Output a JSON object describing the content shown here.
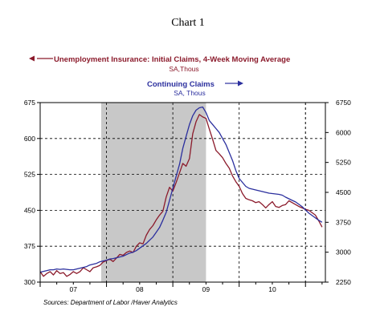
{
  "title": "Chart 1",
  "chart_data": {
    "type": "line",
    "colors": {
      "initial_claims": "#8b1a2b",
      "continuing_claims": "#2b2f9e",
      "recession_shade": "#c8c8c8"
    },
    "legend": {
      "initial": "Unemployment Insurance: Initial Claims, 4-Week Moving Average",
      "initial_units": "SA,Thous",
      "continuing": "Continuing Claims",
      "continuing_units": "SA, Thous"
    },
    "source": "Sources:  Department of Labor /Haver Analytics",
    "left_axis": {
      "ylim": [
        300,
        675
      ],
      "ticks": [
        "675",
        "600",
        "525",
        "450",
        "375",
        "300"
      ]
    },
    "right_axis": {
      "ylim": [
        2250,
        6750
      ],
      "ticks": [
        "6750",
        "6000",
        "5250",
        "4500",
        "3750",
        "3000",
        "2250"
      ]
    },
    "x_axis": {
      "xlim": [
        2007.0,
        2011.3
      ],
      "tick_labels": [
        "07",
        "08",
        "09",
        "10"
      ]
    },
    "recession": [
      2007.92,
      2009.5
    ],
    "series": [
      {
        "name": "Unemployment Insurance: Initial Claims, 4-Week Moving Average",
        "axis": "left",
        "x": [
          2007.0,
          2007.05,
          2007.1,
          2007.15,
          2007.2,
          2007.25,
          2007.3,
          2007.35,
          2007.4,
          2007.45,
          2007.5,
          2007.55,
          2007.6,
          2007.65,
          2007.7,
          2007.75,
          2007.8,
          2007.85,
          2007.9,
          2007.95,
          2008.0,
          2008.05,
          2008.1,
          2008.15,
          2008.2,
          2008.25,
          2008.3,
          2008.35,
          2008.4,
          2008.45,
          2008.5,
          2008.55,
          2008.6,
          2008.65,
          2008.7,
          2008.75,
          2008.8,
          2008.85,
          2008.9,
          2008.95,
          2009.0,
          2009.05,
          2009.1,
          2009.15,
          2009.2,
          2009.25,
          2009.3,
          2009.35,
          2009.4,
          2009.45,
          2009.5,
          2009.55,
          2009.6,
          2009.65,
          2009.7,
          2009.75,
          2009.8,
          2009.85,
          2009.9,
          2009.95,
          2010.0,
          2010.05,
          2010.1,
          2010.15,
          2010.2,
          2010.25,
          2010.3,
          2010.35,
          2010.4,
          2010.45,
          2010.5,
          2010.55,
          2010.6,
          2010.65,
          2010.7,
          2010.75,
          2010.8,
          2010.85,
          2010.9,
          2010.95,
          2011.0,
          2011.05,
          2011.1,
          2011.15,
          2011.2,
          2011.25
        ],
        "values": [
          322,
          312,
          318,
          322,
          315,
          324,
          318,
          320,
          312,
          316,
          322,
          318,
          322,
          330,
          326,
          322,
          330,
          332,
          335,
          342,
          345,
          348,
          343,
          350,
          358,
          356,
          362,
          365,
          362,
          375,
          382,
          380,
          398,
          410,
          418,
          430,
          440,
          448,
          478,
          498,
          490,
          508,
          528,
          548,
          542,
          558,
          610,
          635,
          650,
          645,
          642,
          620,
          598,
          575,
          568,
          560,
          548,
          538,
          522,
          510,
          500,
          485,
          475,
          472,
          470,
          466,
          468,
          462,
          455,
          462,
          468,
          458,
          456,
          460,
          462,
          470,
          466,
          462,
          458,
          455,
          452,
          450,
          445,
          440,
          428,
          415
        ]
      },
      {
        "name": "Continuing Claims",
        "axis": "right",
        "x": [
          2007.0,
          2007.05,
          2007.1,
          2007.15,
          2007.2,
          2007.25,
          2007.3,
          2007.35,
          2007.4,
          2007.45,
          2007.5,
          2007.55,
          2007.6,
          2007.65,
          2007.7,
          2007.75,
          2007.8,
          2007.85,
          2007.9,
          2007.95,
          2008.0,
          2008.05,
          2008.1,
          2008.15,
          2008.2,
          2008.25,
          2008.3,
          2008.35,
          2008.4,
          2008.45,
          2008.5,
          2008.55,
          2008.6,
          2008.65,
          2008.7,
          2008.75,
          2008.8,
          2008.85,
          2008.9,
          2008.95,
          2009.0,
          2009.05,
          2009.1,
          2009.15,
          2009.2,
          2009.25,
          2009.3,
          2009.35,
          2009.4,
          2009.45,
          2009.5,
          2009.55,
          2009.6,
          2009.65,
          2009.7,
          2009.75,
          2009.8,
          2009.85,
          2009.9,
          2009.95,
          2010.0,
          2010.05,
          2010.1,
          2010.15,
          2010.2,
          2010.25,
          2010.3,
          2010.35,
          2010.4,
          2010.45,
          2010.5,
          2010.55,
          2010.6,
          2010.65,
          2010.7,
          2010.75,
          2010.8,
          2010.85,
          2010.9,
          2010.95,
          2011.0,
          2011.05,
          2011.1,
          2011.15,
          2011.2,
          2011.25
        ],
        "values": [
          2500,
          2520,
          2540,
          2560,
          2560,
          2580,
          2570,
          2580,
          2570,
          2560,
          2560,
          2580,
          2600,
          2620,
          2640,
          2680,
          2700,
          2720,
          2760,
          2780,
          2800,
          2830,
          2840,
          2860,
          2880,
          2900,
          2940,
          2980,
          3000,
          3040,
          3100,
          3160,
          3220,
          3300,
          3380,
          3500,
          3620,
          3800,
          4000,
          4300,
          4600,
          4900,
          5200,
          5600,
          5900,
          6200,
          6420,
          6560,
          6620,
          6640,
          6500,
          6300,
          6200,
          6100,
          6000,
          5850,
          5700,
          5500,
          5300,
          5050,
          4850,
          4750,
          4650,
          4600,
          4580,
          4560,
          4540,
          4520,
          4500,
          4480,
          4470,
          4460,
          4450,
          4430,
          4380,
          4340,
          4300,
          4260,
          4200,
          4140,
          4060,
          3980,
          3920,
          3860,
          3800,
          3750
        ]
      }
    ]
  }
}
